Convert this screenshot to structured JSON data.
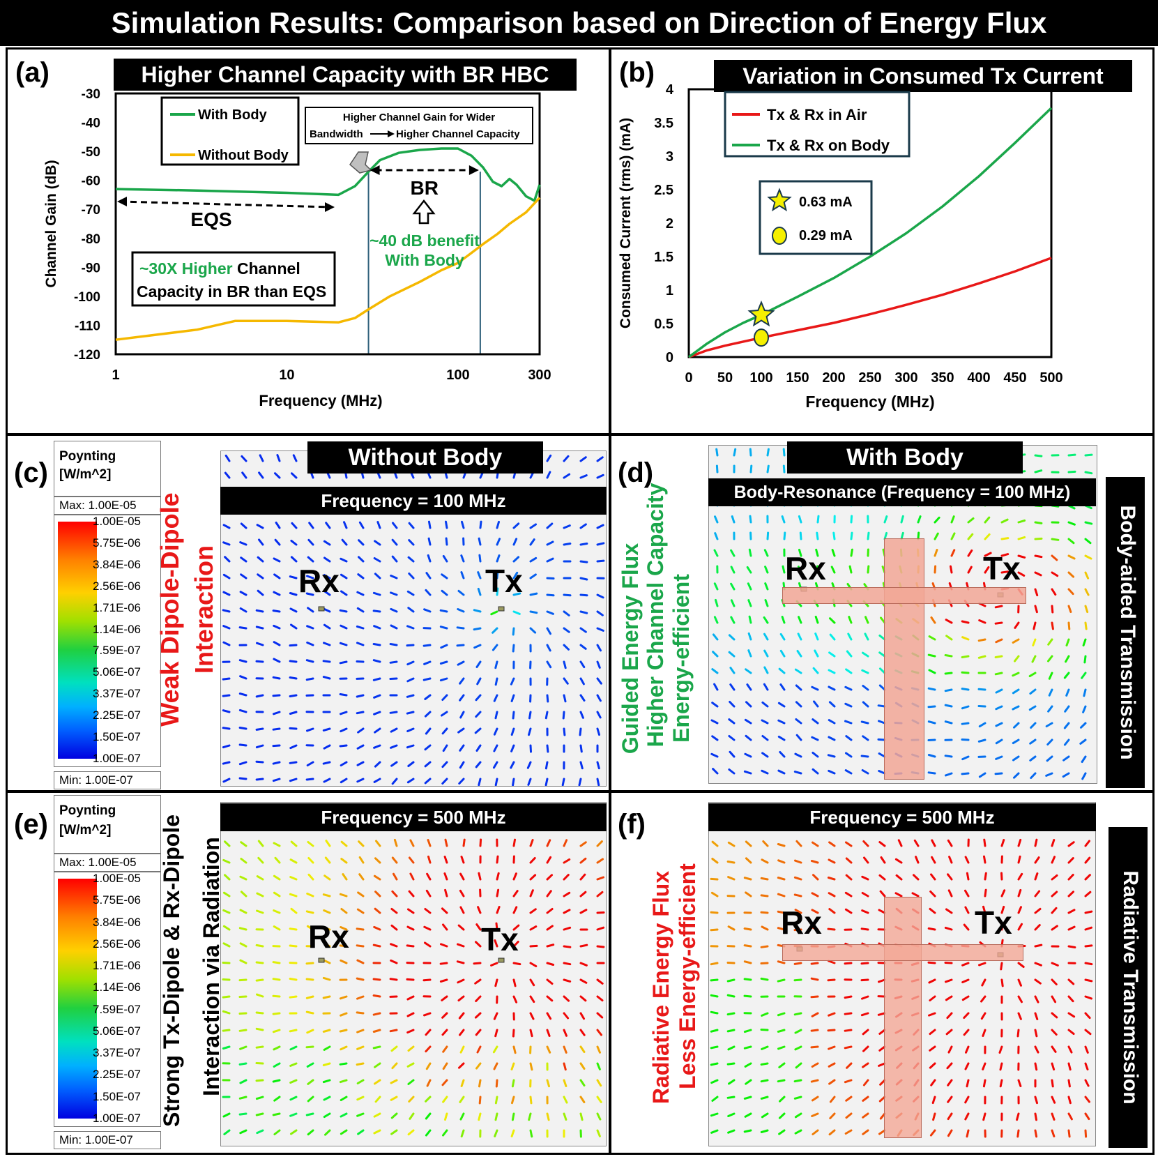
{
  "title": "Simulation Results: Comparison based on Direction of Energy Flux",
  "panel_labels": {
    "a": "(a)",
    "b": "(b)",
    "c": "(c)",
    "d": "(d)",
    "e": "(e)",
    "f": "(f)"
  },
  "colors": {
    "green": "#1aa64a",
    "yellow": "#f5b800",
    "red": "#e81818",
    "blue_dark": "#0a1bd8",
    "body": "#f2a796"
  },
  "chart_data": [
    {
      "type": "line",
      "id": "a",
      "title": "Higher Channel Capacity with BR HBC",
      "xlabel": "Frequency (MHz)",
      "ylabel": "Channel Gain (dB)",
      "xscale": "log",
      "xlim": [
        1,
        300
      ],
      "ylim": [
        -120,
        -30
      ],
      "xticks": [
        1,
        10,
        100,
        300
      ],
      "xtick_labels": [
        "1",
        "10",
        "100",
        "300"
      ],
      "yticks": [
        -30,
        -40,
        -50,
        -60,
        -70,
        -80,
        -90,
        -100,
        -110,
        -120
      ],
      "ytick_labels": [
        "-30",
        "-40",
        "-50",
        "-60",
        "-70",
        "-80",
        "-90",
        "-100",
        "-110",
        "-120"
      ],
      "series": [
        {
          "name": "With Body",
          "color": "#1aa64a",
          "x": [
            1,
            3,
            10,
            20,
            25,
            30,
            35,
            45,
            60,
            80,
            100,
            120,
            140,
            160,
            180,
            200,
            220,
            250,
            280,
            300
          ],
          "y": [
            -63,
            -63.5,
            -64.3,
            -65,
            -62,
            -57,
            -53,
            -50.5,
            -49.5,
            -49,
            -49,
            -51.5,
            -55.5,
            -60.5,
            -62,
            -59.5,
            -61.5,
            -65.5,
            -67,
            -61.5
          ]
        },
        {
          "name": "Without Body",
          "color": "#f5b800",
          "x": [
            1,
            3,
            5,
            10,
            20,
            25,
            30,
            40,
            60,
            80,
            100,
            120,
            140,
            170,
            200,
            250,
            300
          ],
          "y": [
            -115,
            -111.5,
            -108.5,
            -108.5,
            -109,
            -107.5,
            -104.5,
            -100,
            -95,
            -91,
            -88.5,
            -85,
            -82,
            -78.5,
            -75,
            -71,
            -66
          ]
        }
      ],
      "annotations": {
        "note_line1": "Higher Channel Gain for Wider",
        "note_line2a": "Bandwidth",
        "note_line2b": "Higher Channel Capacity",
        "eqs": "EQS",
        "br": "BR",
        "benefit_line1": "~40 dB benefit",
        "benefit_line2": "With Body",
        "capacity_highlight": "~30X Higher",
        "capacity_rest1": " Channel",
        "capacity_line2": "Capacity in BR than EQS",
        "br_band_mhz": [
          30,
          135
        ]
      }
    },
    {
      "type": "line",
      "id": "b",
      "title": "Variation in Consumed Tx Current",
      "xlabel": "Frequency (MHz)",
      "ylabel": "Consumed Current (rms) (mA)",
      "xlim": [
        0,
        500
      ],
      "ylim": [
        0,
        4
      ],
      "xticks": [
        0,
        50,
        100,
        150,
        200,
        250,
        300,
        350,
        400,
        450,
        500
      ],
      "xtick_labels": [
        "0",
        "50",
        "100",
        "150",
        "200",
        "250",
        "300",
        "350",
        "400",
        "450",
        "500"
      ],
      "yticks": [
        0,
        0.5,
        1,
        1.5,
        2,
        2.5,
        3,
        3.5,
        4
      ],
      "ytick_labels": [
        "0",
        "0.5",
        "1",
        "1.5",
        "2",
        "2.5",
        "3",
        "3.5",
        "4"
      ],
      "series": [
        {
          "name": "Tx & Rx in Air",
          "color": "#e81818",
          "x": [
            0,
            25,
            50,
            75,
            100,
            150,
            200,
            250,
            300,
            350,
            400,
            450,
            500
          ],
          "y": [
            0,
            0.1,
            0.17,
            0.23,
            0.29,
            0.4,
            0.51,
            0.64,
            0.78,
            0.93,
            1.1,
            1.28,
            1.48
          ]
        },
        {
          "name": "Tx & Rx on Body",
          "color": "#1aa64a",
          "x": [
            0,
            25,
            50,
            75,
            100,
            150,
            200,
            250,
            300,
            350,
            400,
            450,
            500
          ],
          "y": [
            0,
            0.2,
            0.37,
            0.51,
            0.63,
            0.9,
            1.18,
            1.5,
            1.85,
            2.25,
            2.7,
            3.2,
            3.72
          ]
        }
      ],
      "markers": [
        {
          "label": "0.63 mA",
          "shape": "star",
          "x": 100,
          "y": 0.63
        },
        {
          "label": "0.29 mA",
          "shape": "circle",
          "x": 100,
          "y": 0.29
        }
      ]
    }
  ],
  "colorbar": {
    "title_line1": "Poynting",
    "title_line2": "[W/m^2]",
    "max": "Max: 1.00E-05",
    "min": "Min: 1.00E-07",
    "ticks": [
      "1.00E-05",
      "5.75E-06",
      "3.84E-06",
      "2.56E-06",
      "1.71E-06",
      "1.14E-06",
      "7.59E-07",
      "5.06E-07",
      "3.37E-07",
      "2.25E-07",
      "1.50E-07",
      "1.00E-07"
    ]
  },
  "panel_c": {
    "heading": "Without Body",
    "freq": "Frequency = 100 MHz",
    "side_line1": "Weak Dipole-Dipole",
    "side_line2": "Interaction",
    "rx": "Rx",
    "tx": "Tx",
    "field_intensity": 0.05
  },
  "panel_d": {
    "heading": "With Body",
    "freq": "Body-Resonance (Frequency = 100 MHz)",
    "side_line1": "Guided Energy Flux",
    "side_line2": "Higher Channel Capacity",
    "side_line3": "Energy-efficient",
    "right_label": "Body-aided Transmission",
    "rx": "Rx",
    "tx": "Tx",
    "field_intensity": 0.35
  },
  "panel_e": {
    "freq": "Frequency = 500 MHz",
    "side_line1": "Strong Tx-Dipole & Rx-Dipole",
    "side_line2": "Interaction via Radiation",
    "rx": "Rx",
    "tx": "Tx",
    "field_intensity": 0.7
  },
  "panel_f": {
    "freq": "Frequency = 500 MHz",
    "side_line1": "Radiative Energy Flux",
    "side_line2": "Less Energy-efficient",
    "right_label": "Radiative Transmission",
    "rx": "Rx",
    "tx": "Tx",
    "field_intensity": 0.85
  }
}
